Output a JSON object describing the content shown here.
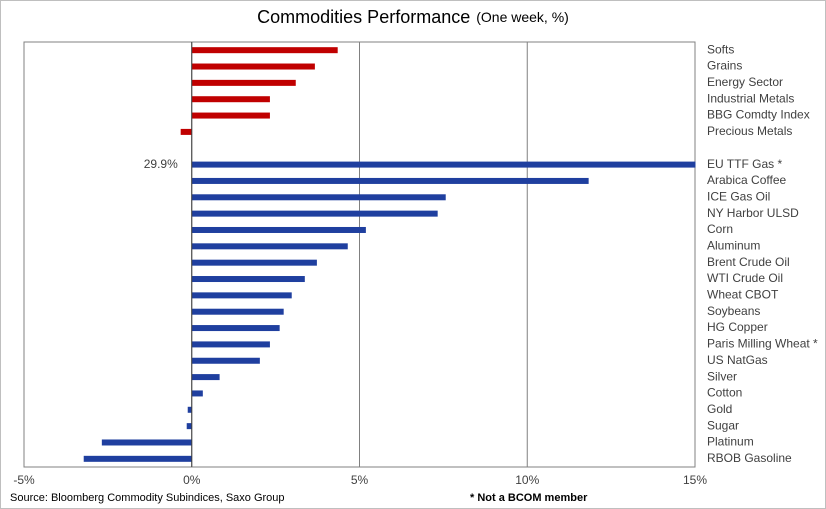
{
  "chart_data": {
    "type": "barh",
    "title": "Commodities Performance",
    "subtitle": "(One week, %)",
    "source": "Source: Bloomberg Commodity Subindices, Saxo Group",
    "note": "* Not a BCOM member",
    "categories": [
      "Softs",
      "Grains",
      "Energy Sector",
      "Industrial Metals",
      "BBG Comdty Index",
      "Precious Metals",
      null,
      "EU TTF Gas *",
      "Arabica Coffee",
      "ICE Gas Oil",
      "NY Harbor ULSD",
      "Corn",
      "Aluminum",
      "Brent Crude Oil",
      "WTI Crude Oil",
      "Wheat CBOT",
      "Soybeans",
      "HG Copper",
      "Paris Milling Wheat *",
      "US NatGas",
      "Silver",
      "Cotton",
      "Gold",
      "Sugar",
      "Platinum",
      "RBOB Gasoline"
    ],
    "values": [
      4.35,
      3.67,
      3.1,
      2.33,
      2.33,
      -0.33,
      null,
      29.9,
      11.83,
      7.57,
      7.33,
      5.19,
      4.65,
      3.73,
      3.37,
      2.98,
      2.74,
      2.62,
      2.33,
      2.03,
      0.83,
      0.33,
      -0.12,
      -0.15,
      -2.68,
      -3.22
    ],
    "value_labels": [
      null,
      null,
      null,
      null,
      null,
      null,
      null,
      "29.9%",
      null,
      null,
      null,
      null,
      null,
      null,
      null,
      null,
      null,
      null,
      null,
      null,
      null,
      null,
      null,
      null,
      null,
      null
    ],
    "colors": [
      "#c00000",
      "#c00000",
      "#c00000",
      "#c00000",
      "#c00000",
      "#c00000",
      null,
      "#1f3f9f",
      "#1f3f9f",
      "#1f3f9f",
      "#1f3f9f",
      "#1f3f9f",
      "#1f3f9f",
      "#1f3f9f",
      "#1f3f9f",
      "#1f3f9f",
      "#1f3f9f",
      "#1f3f9f",
      "#1f3f9f",
      "#1f3f9f",
      "#1f3f9f",
      "#1f3f9f",
      "#1f3f9f",
      "#1f3f9f",
      "#1f3f9f",
      "#1f3f9f"
    ],
    "xlim": [
      -5,
      15
    ],
    "xticks": [
      {
        "value": -5,
        "label": "-5%"
      },
      {
        "value": 0,
        "label": "0%"
      },
      {
        "value": 5,
        "label": "5%"
      },
      {
        "value": 10,
        "label": "10%"
      },
      {
        "value": 15,
        "label": "15%"
      }
    ],
    "grid": true
  }
}
